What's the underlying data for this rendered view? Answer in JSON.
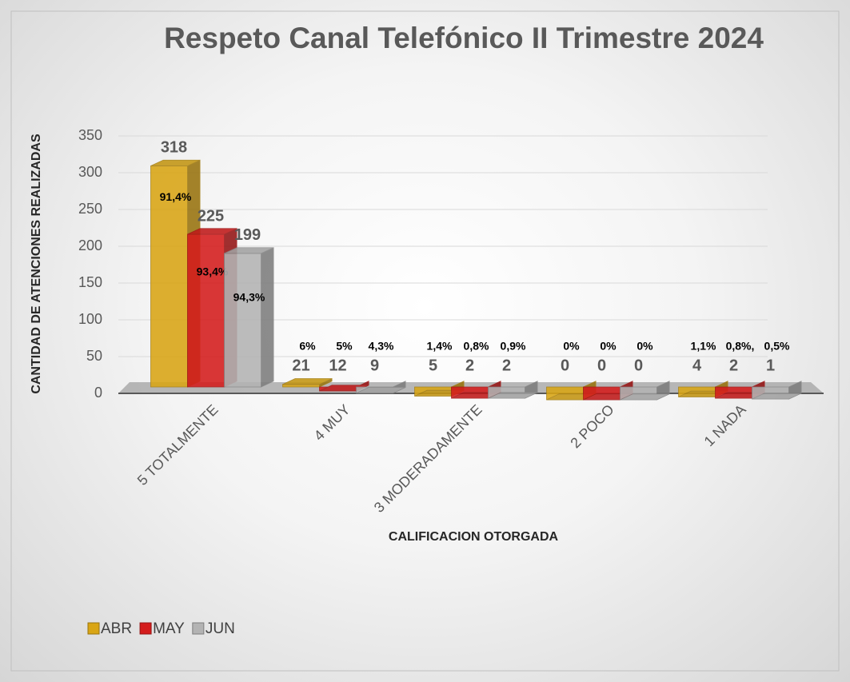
{
  "chart_data": {
    "type": "bar3d",
    "title": "Respeto Canal Telefónico II Trimestre 2024",
    "x_label": "CALIFICACION OTORGADA",
    "y_label": "CANTIDAD DE ATENCIONES  REALIZADAS",
    "categories": [
      "5 TOTALMENTE",
      "4 MUY",
      "3 MODERADAMENTE",
      "2 POCO",
      "1 NADA"
    ],
    "series": [
      {
        "name": "ABR",
        "color": "#d9a514",
        "values": [
          318,
          21,
          5,
          0,
          4
        ],
        "percent_labels": [
          "91,4%",
          "6%",
          "1,4%",
          "0%",
          "1,1%"
        ]
      },
      {
        "name": "MAY",
        "color": "#d41c1c",
        "values": [
          225,
          12,
          2,
          0,
          2
        ],
        "percent_labels": [
          "93,4%",
          "5%",
          "0,8%",
          "0%",
          "0,8%,"
        ]
      },
      {
        "name": "JUN",
        "color": "#b3b3b3",
        "values": [
          199,
          9,
          2,
          0,
          1
        ],
        "percent_labels": [
          "94,3%",
          "4,3%",
          "0,9%",
          "0%",
          "0,5%"
        ]
      }
    ],
    "ylim": [
      0,
      350
    ],
    "yticks": [
      0,
      50,
      100,
      150,
      200,
      250,
      300,
      350
    ],
    "grid": true,
    "legend": "bottom-left"
  }
}
